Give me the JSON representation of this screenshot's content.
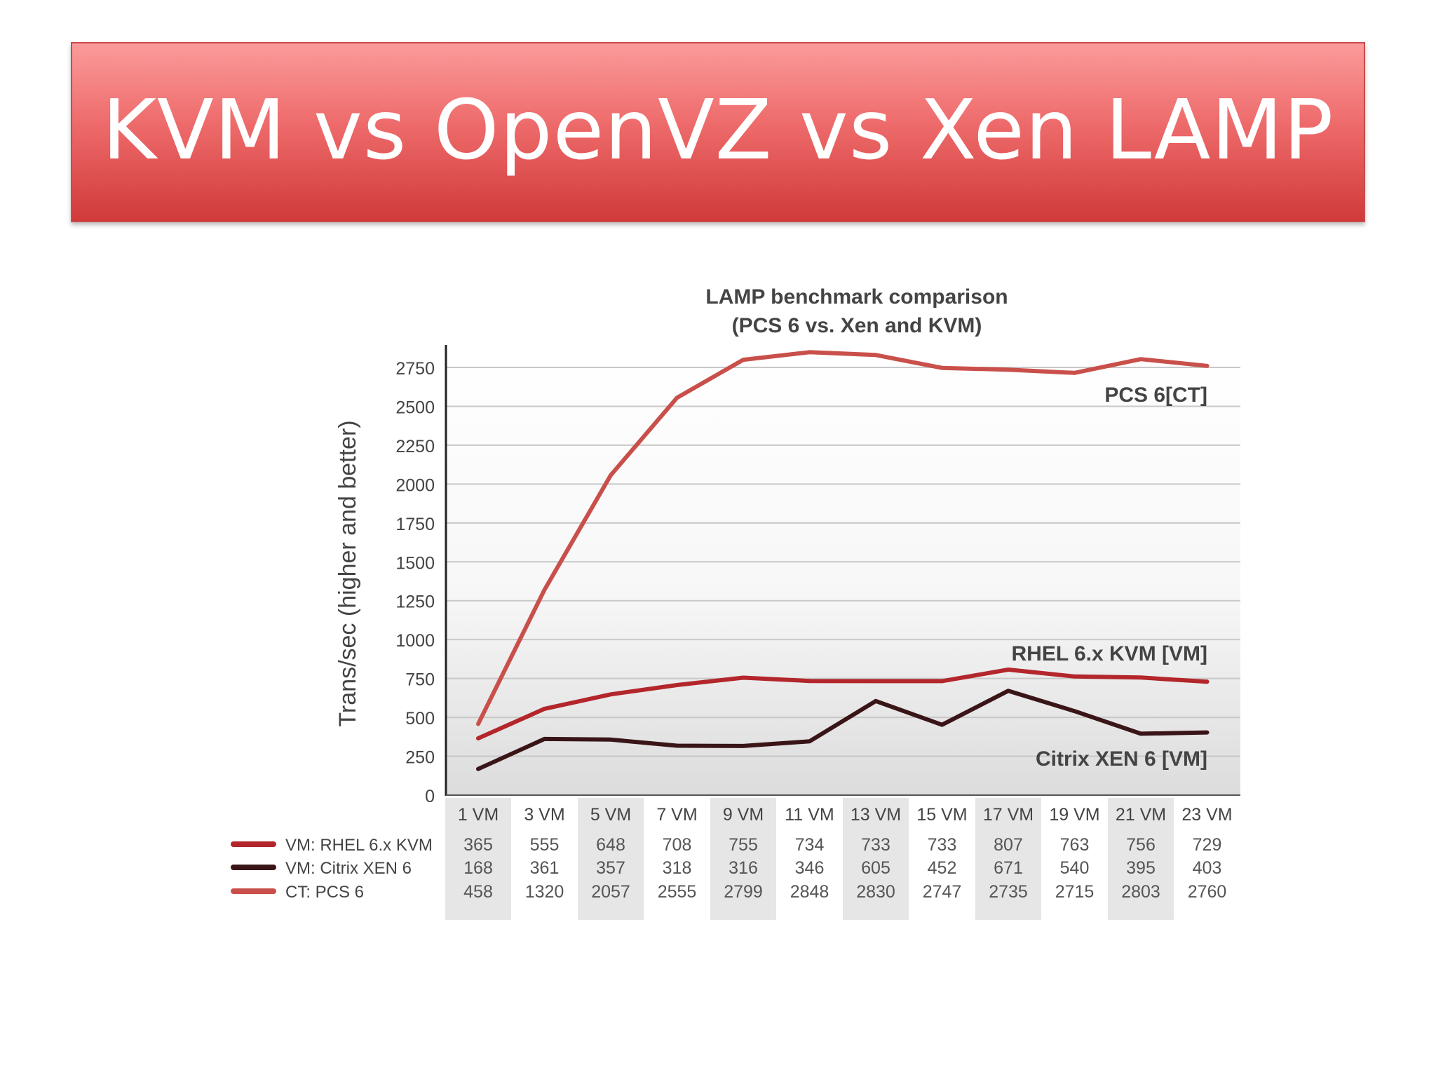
{
  "slide": {
    "title": "KVM vs OpenVZ vs Xen LAMP"
  },
  "chart_data": {
    "type": "line",
    "title": "LAMP benchmark comparison",
    "subtitle": "(PCS 6 vs. Xen and KVM)",
    "ylabel": "Trans/sec (higher and better)",
    "xlabel": "",
    "ylim": [
      0,
      2900
    ],
    "yticks": [
      0,
      250,
      500,
      750,
      1000,
      1250,
      1500,
      1750,
      2000,
      2250,
      2500,
      2750
    ],
    "grid": true,
    "categories": [
      "1 VM",
      "3 VM",
      "5 VM",
      "7 VM",
      "9 VM",
      "11 VM",
      "13 VM",
      "15 VM",
      "17 VM",
      "19 VM",
      "21 VM",
      "23 VM"
    ],
    "series": [
      {
        "name": "VM: RHEL 6.x KVM",
        "label": "RHEL 6.x KVM [VM]",
        "color": "#b3262b",
        "values": [
          365,
          555,
          648,
          708,
          755,
          734,
          733,
          733,
          807,
          763,
          756,
          729
        ]
      },
      {
        "name": "VM: Citrix XEN 6",
        "label": "Citrix XEN 6 [VM]",
        "color": "#3a1518",
        "values": [
          168,
          361,
          357,
          318,
          316,
          346,
          605,
          452,
          671,
          540,
          395,
          403
        ]
      },
      {
        "name": "CT: PCS 6",
        "label": "PCS 6[CT]",
        "color": "#c9504a",
        "values": [
          458,
          1320,
          2057,
          2555,
          2799,
          2848,
          2830,
          2747,
          2735,
          2715,
          2803,
          2760
        ]
      }
    ]
  }
}
